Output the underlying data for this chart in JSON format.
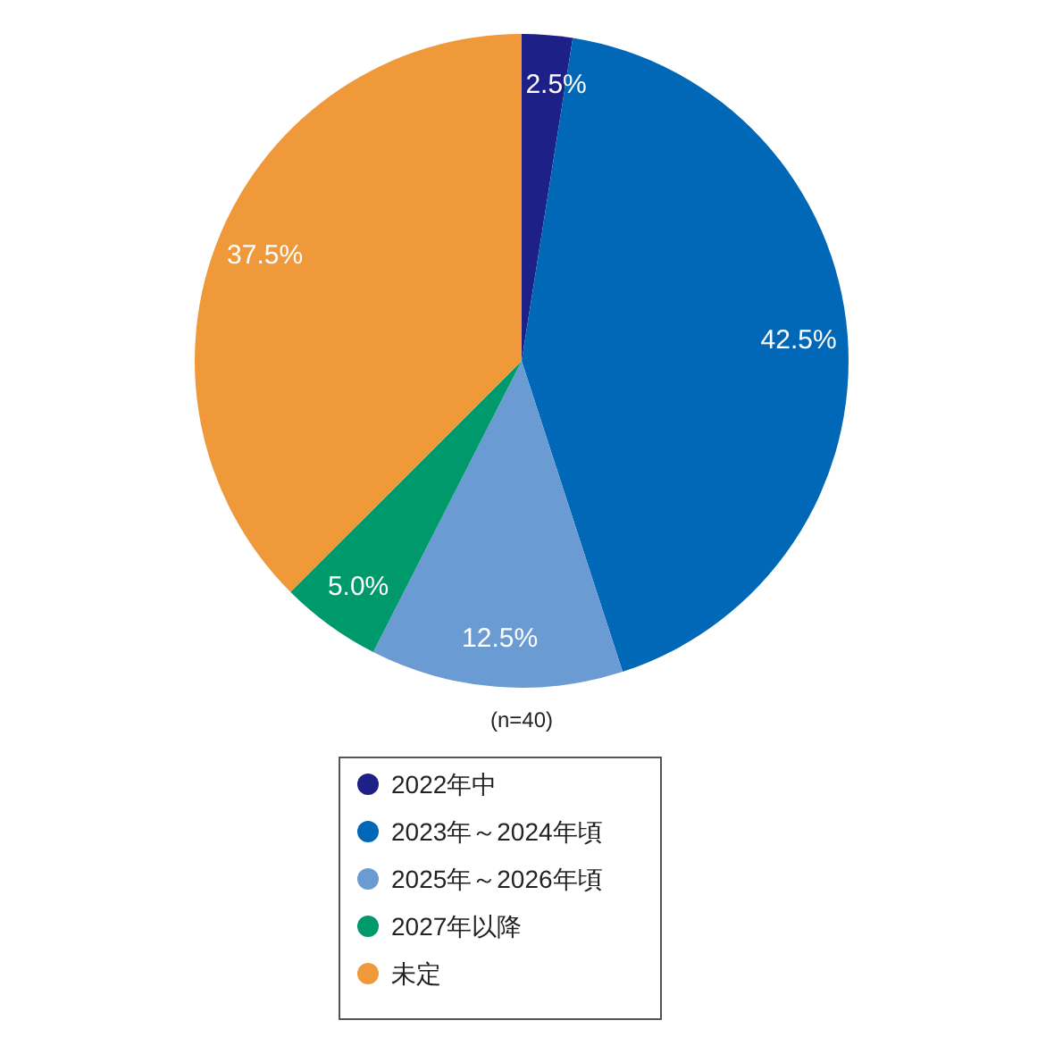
{
  "chart_data": {
    "type": "pie",
    "categories": [
      "2022年中",
      "2023年～2024年頃",
      "2025年～2026年頃",
      "2027年以降",
      "未定"
    ],
    "values": [
      2.5,
      42.5,
      12.5,
      5.0,
      37.5
    ],
    "value_labels": [
      "2.5%",
      "42.5%",
      "12.5%",
      "5.0%",
      "37.5%"
    ],
    "colors": [
      "#1d2087",
      "#0068b7",
      "#6a9bd2",
      "#00996b",
      "#f0993b"
    ],
    "annotations": [
      "(n=40)"
    ],
    "legend": "bottom"
  }
}
